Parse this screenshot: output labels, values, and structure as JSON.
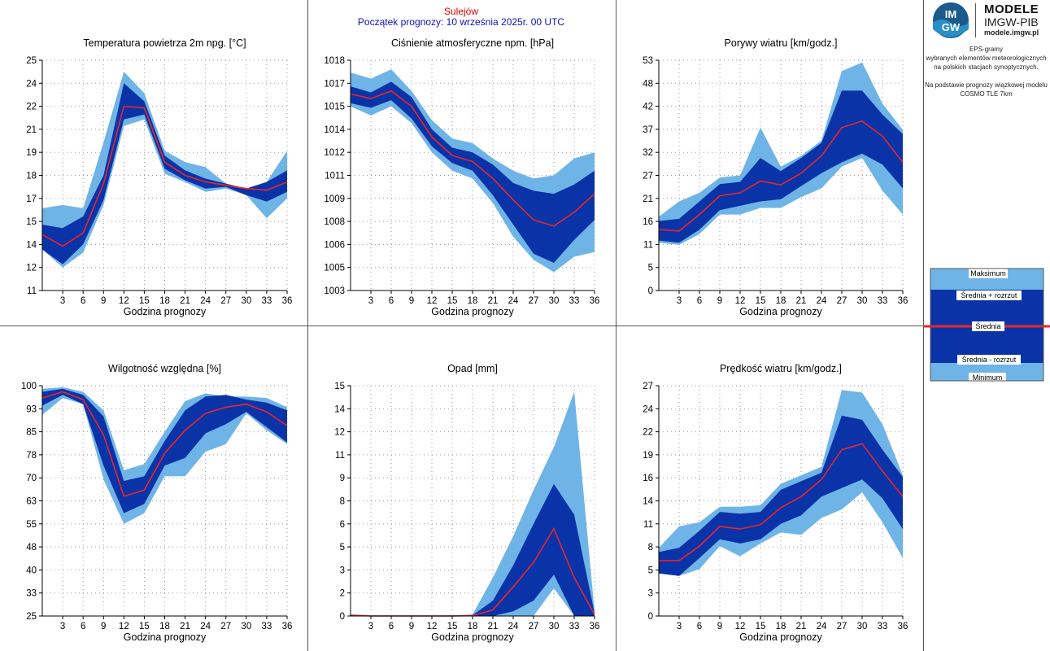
{
  "header": {
    "station": "Sulejów",
    "forecast_start": "Początek prognozy: 10 września 2025r. 00 UTC"
  },
  "logo": {
    "emblem_text_top": "IM",
    "emblem_text_bottom": "GW",
    "brand": "MODELE",
    "org": "IMGW-PIB",
    "site": "modele.imgw.pl"
  },
  "description": {
    "lines1": [
      "EPS-gramy",
      "wybranych elementów meteorologicznych",
      "na polskich stacjach  synoptycznych."
    ],
    "lines2": [
      "Na podstawie prognozy wiązkowej modelu",
      "COSMO TLE 7km"
    ]
  },
  "legend": {
    "max": "Maksimum",
    "mean_plus": "Średnia + rozrzut",
    "mean": "Średnia",
    "mean_minus": "Średnia - rozrzut",
    "min": "Minimum"
  },
  "colors": {
    "band_outer": "#6fb4e6",
    "band_inner": "#0a33a8",
    "mean_line": "#e8262c",
    "station_text": "#e00000",
    "start_text": "#1010c0"
  },
  "chart_data": [
    {
      "type": "area",
      "title": "Temperatura powietrza 2m npg. [°C]",
      "xlabel": "Godzina prognozy",
      "x": [
        0,
        3,
        6,
        9,
        12,
        15,
        18,
        21,
        24,
        27,
        30,
        33,
        36
      ],
      "x_ticks": [
        "3",
        "6",
        "9",
        "12",
        "15",
        "18",
        "21",
        "24",
        "27",
        "30",
        "33",
        "36"
      ],
      "ylim": [
        11,
        25
      ],
      "y_ticks": [
        "11",
        "12",
        "14",
        "15",
        "17",
        "18",
        "19",
        "21",
        "22",
        "24",
        "25"
      ],
      "series": [
        {
          "name": "Maksimum",
          "values": [
            16.0,
            16.2,
            16.0,
            20.0,
            24.3,
            23.0,
            19.5,
            18.8,
            18.5,
            17.5,
            17.2,
            17.6,
            19.5
          ]
        },
        {
          "name": "Średnia + rozrzut",
          "values": [
            15.0,
            14.8,
            15.5,
            18.0,
            23.6,
            22.5,
            19.2,
            18.3,
            17.8,
            17.5,
            17.2,
            17.6,
            18.3
          ]
        },
        {
          "name": "Średnia",
          "values": [
            14.4,
            13.7,
            14.5,
            17.5,
            22.2,
            22.1,
            18.8,
            18.0,
            17.6,
            17.4,
            17.2,
            17.1,
            17.6
          ]
        },
        {
          "name": "Średnia - rozrzut",
          "values": [
            13.5,
            12.6,
            13.8,
            16.5,
            21.4,
            21.7,
            18.4,
            17.7,
            17.2,
            17.3,
            16.8,
            16.4,
            17.0
          ]
        },
        {
          "name": "Minimum",
          "values": [
            13.5,
            12.4,
            13.3,
            16.2,
            21.0,
            21.4,
            18.1,
            17.6,
            17.0,
            17.2,
            16.8,
            15.4,
            16.6
          ]
        }
      ]
    },
    {
      "type": "area",
      "title": "Ciśnienie atmosferyczne npm. [hPa]",
      "xlabel": "Godzina prognozy",
      "x": [
        0,
        3,
        6,
        9,
        12,
        15,
        18,
        21,
        24,
        27,
        30,
        33,
        36
      ],
      "x_ticks": [
        "3",
        "6",
        "9",
        "12",
        "15",
        "18",
        "21",
        "24",
        "27",
        "30",
        "33",
        "36"
      ],
      "ylim": [
        1003,
        1018
      ],
      "y_ticks": [
        "1003",
        "1005",
        "1006",
        "1008",
        "1009",
        "1011",
        "1012",
        "1014",
        "1015",
        "1017",
        "1018"
      ],
      "series": [
        {
          "name": "Maksimum",
          "values": [
            1017.2,
            1016.8,
            1017.4,
            1016.0,
            1014.1,
            1012.9,
            1012.6,
            1011.6,
            1010.8,
            1010.3,
            1010.5,
            1011.6,
            1012.0
          ]
        },
        {
          "name": "Średnia + rozrzut",
          "values": [
            1016.3,
            1015.9,
            1016.6,
            1015.6,
            1013.5,
            1012.3,
            1012.0,
            1011.2,
            1010.0,
            1009.5,
            1009.3,
            1009.9,
            1010.8
          ]
        },
        {
          "name": "Średnia",
          "values": [
            1015.8,
            1015.5,
            1016.0,
            1015.0,
            1013.0,
            1011.8,
            1011.4,
            1010.3,
            1008.9,
            1007.6,
            1007.2,
            1008.1,
            1009.3
          ]
        },
        {
          "name": "Średnia - rozrzut",
          "values": [
            1015.2,
            1014.9,
            1015.4,
            1014.2,
            1012.4,
            1011.3,
            1010.8,
            1009.2,
            1007.3,
            1005.4,
            1004.8,
            1006.3,
            1007.6
          ]
        },
        {
          "name": "Minimum",
          "values": [
            1015.0,
            1014.4,
            1015.0,
            1013.9,
            1012.0,
            1010.8,
            1010.3,
            1008.7,
            1006.5,
            1005.0,
            1004.2,
            1005.2,
            1005.5
          ]
        }
      ]
    },
    {
      "type": "area",
      "title": "Porywy wiatru [km/godz.]",
      "xlabel": "Godzina prognozy",
      "x": [
        0,
        3,
        6,
        9,
        12,
        15,
        18,
        21,
        24,
        27,
        30,
        33,
        36
      ],
      "x_ticks": [
        "3",
        "6",
        "9",
        "12",
        "15",
        "18",
        "21",
        "24",
        "27",
        "30",
        "33",
        "36"
      ],
      "ylim": [
        0,
        53
      ],
      "y_ticks": [
        "0",
        "5",
        "11",
        "16",
        "21",
        "27",
        "32",
        "37",
        "42",
        "48",
        "53"
      ],
      "series": [
        {
          "name": "Maksimum",
          "values": [
            17.0,
            20.5,
            22.5,
            26.0,
            26.5,
            37.5,
            28.5,
            31.0,
            34.5,
            50.5,
            52.5,
            43.0,
            37.0
          ]
        },
        {
          "name": "Średnia + rozrzut",
          "values": [
            16.0,
            16.5,
            20.5,
            24.5,
            25.0,
            30.5,
            27.5,
            30.5,
            34.0,
            46.0,
            46.0,
            40.5,
            36.0
          ]
        },
        {
          "name": "Średnia",
          "values": [
            14.0,
            13.7,
            17.5,
            21.8,
            22.5,
            25.2,
            24.3,
            27.0,
            31.0,
            37.5,
            39.0,
            35.5,
            29.5
          ]
        },
        {
          "name": "Średnia - rozrzut",
          "values": [
            11.5,
            11.0,
            14.0,
            18.5,
            19.5,
            20.5,
            21.0,
            24.0,
            27.0,
            29.5,
            31.5,
            29.0,
            23.5
          ]
        },
        {
          "name": "Minimum",
          "values": [
            11.0,
            10.5,
            13.0,
            17.5,
            17.5,
            19.0,
            19.0,
            21.5,
            23.5,
            28.5,
            30.5,
            23.0,
            17.5
          ]
        }
      ]
    },
    {
      "type": "area",
      "title": "Wilgotność względna [%]",
      "xlabel": "Godzina prognozy",
      "x": [
        0,
        3,
        6,
        9,
        12,
        15,
        18,
        21,
        24,
        27,
        30,
        33,
        36
      ],
      "x_ticks": [
        "3",
        "6",
        "9",
        "12",
        "15",
        "18",
        "21",
        "24",
        "27",
        "30",
        "33",
        "36"
      ],
      "ylim": [
        25,
        100
      ],
      "y_ticks": [
        "25",
        "33",
        "40",
        "48",
        "55",
        "63",
        "70",
        "78",
        "85",
        "93",
        "100"
      ],
      "series": [
        {
          "name": "Maksimum",
          "values": [
            99.0,
            99.5,
            98.0,
            92.0,
            72.5,
            74.5,
            85.0,
            95.0,
            97.5,
            96.5,
            96.5,
            96.0,
            93.0
          ]
        },
        {
          "name": "Średnia + rozrzut",
          "values": [
            98.0,
            99.0,
            97.0,
            90.0,
            69.0,
            70.5,
            82.0,
            92.0,
            96.5,
            97.0,
            95.5,
            94.5,
            92.0
          ]
        },
        {
          "name": "Średnia",
          "values": [
            96.0,
            98.0,
            95.5,
            84.0,
            64.0,
            66.0,
            78.0,
            85.5,
            91.0,
            93.0,
            94.0,
            91.5,
            87.0
          ]
        },
        {
          "name": "Średnia - rozrzut",
          "values": [
            93.5,
            97.0,
            94.0,
            74.0,
            58.5,
            61.5,
            74.0,
            76.5,
            84.5,
            87.5,
            91.5,
            86.5,
            81.5
          ]
        },
        {
          "name": "Minimum",
          "values": [
            90.5,
            96.0,
            94.0,
            69.5,
            55.0,
            58.5,
            70.5,
            70.5,
            78.5,
            81.0,
            91.0,
            85.5,
            81.0
          ]
        }
      ]
    },
    {
      "type": "area",
      "title": "Opad [mm]",
      "xlabel": "Godzina prognozy",
      "x": [
        0,
        3,
        6,
        9,
        12,
        15,
        18,
        21,
        24,
        27,
        30,
        33,
        36
      ],
      "x_ticks": [
        "3",
        "6",
        "9",
        "12",
        "15",
        "18",
        "21",
        "24",
        "27",
        "30",
        "33",
        "36"
      ],
      "ylim": [
        0,
        15
      ],
      "y_ticks": [
        "0",
        "2",
        "3",
        "5",
        "6",
        "8",
        "9",
        "11",
        "12",
        "14",
        "15"
      ],
      "series": [
        {
          "name": "Maksimum",
          "values": [
            0.1,
            0.05,
            0.05,
            0.05,
            0.05,
            0.05,
            0.1,
            2.5,
            5.2,
            8.2,
            11.0,
            14.6,
            0.3
          ]
        },
        {
          "name": "Średnia + rozrzut",
          "values": [
            0.05,
            0.02,
            0.02,
            0.02,
            0.02,
            0.03,
            0.05,
            1.0,
            3.3,
            6.0,
            8.6,
            6.6,
            0.2
          ]
        },
        {
          "name": "Średnia",
          "values": [
            0.05,
            0.0,
            0.0,
            0.0,
            0.0,
            0.0,
            0.02,
            0.4,
            1.9,
            3.5,
            5.7,
            2.5,
            0.1
          ]
        },
        {
          "name": "Średnia - rozrzut",
          "values": [
            0.0,
            0.0,
            0.0,
            0.0,
            0.0,
            0.0,
            0.0,
            0.0,
            0.3,
            1.0,
            2.7,
            0.0,
            0.0
          ]
        },
        {
          "name": "Minimum",
          "values": [
            0.0,
            0.0,
            0.0,
            0.0,
            0.0,
            0.0,
            0.0,
            0.0,
            0.0,
            0.0,
            1.8,
            0.0,
            0.0
          ]
        }
      ]
    },
    {
      "type": "area",
      "title": "Prędkość wiatru [km/godz.]",
      "xlabel": "Godzina prognozy",
      "x": [
        0,
        3,
        6,
        9,
        12,
        15,
        18,
        21,
        24,
        27,
        30,
        33,
        36
      ],
      "x_ticks": [
        "3",
        "6",
        "9",
        "12",
        "15",
        "18",
        "21",
        "24",
        "27",
        "30",
        "33",
        "36"
      ],
      "ylim": [
        0,
        27
      ],
      "y_ticks": [
        "0",
        "3",
        "5",
        "8",
        "11",
        "14",
        "16",
        "19",
        "22",
        "24",
        "27"
      ],
      "series": [
        {
          "name": "Maksimum",
          "values": [
            8.0,
            10.5,
            11.0,
            12.8,
            12.8,
            13.0,
            15.5,
            16.5,
            17.5,
            26.5,
            26.2,
            22.5,
            16.5
          ]
        },
        {
          "name": "Średnia + rozrzut",
          "values": [
            7.5,
            8.0,
            10.0,
            12.2,
            12.0,
            12.2,
            14.8,
            15.8,
            16.8,
            23.5,
            23.0,
            19.5,
            16.3
          ]
        },
        {
          "name": "Średnia",
          "values": [
            6.5,
            6.5,
            8.2,
            10.5,
            10.2,
            10.7,
            12.7,
            14.0,
            16.0,
            19.5,
            20.2,
            17.0,
            14.0
          ]
        },
        {
          "name": "Średnia - rozrzut",
          "values": [
            5.0,
            4.7,
            6.8,
            9.0,
            8.5,
            9.0,
            10.8,
            11.8,
            14.0,
            15.0,
            16.0,
            13.8,
            10.2
          ]
        },
        {
          "name": "Minimum",
          "values": [
            5.0,
            4.7,
            5.5,
            8.2,
            7.0,
            8.5,
            9.8,
            9.5,
            11.5,
            12.5,
            14.5,
            11.0,
            6.8
          ]
        }
      ]
    }
  ]
}
